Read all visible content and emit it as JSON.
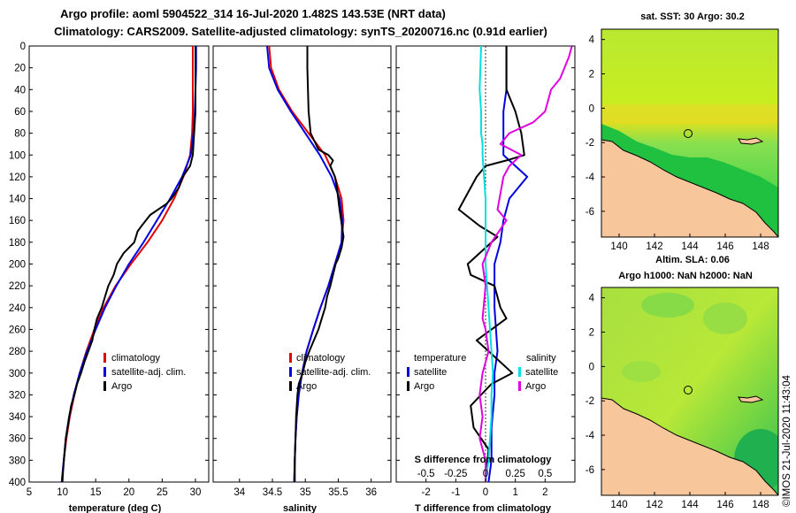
{
  "title": {
    "line1": "Argo profile: aoml 5904522_314 16-Jul-2020 1.482S 143.53E (NRT data)",
    "line2": "Climatology: CARS2009. Satellite-adjusted climatology: synTS_20200716.nc (0.91d earlier)"
  },
  "colors": {
    "climatology": "#e00000",
    "satellite": "#0000e0",
    "argo": "#000000",
    "sat_diff": "#00e0e0",
    "argo_s_diff": "#e000e0",
    "land": "#f7c69a"
  },
  "chart_data": [
    {
      "id": "temperature",
      "type": "line",
      "xlabel": "temperature (deg C)",
      "xlim": [
        5,
        32
      ],
      "ylim": [
        0,
        400
      ],
      "yticks": [
        0,
        20,
        40,
        60,
        80,
        100,
        120,
        140,
        160,
        180,
        200,
        220,
        240,
        260,
        280,
        300,
        320,
        340,
        360,
        380,
        400
      ],
      "xticks": [
        5,
        10,
        15,
        20,
        25,
        30
      ],
      "series": [
        {
          "name": "climatology",
          "x": [
            29.6,
            29.6,
            29.6,
            29.6,
            29.5,
            29.2,
            28.2,
            26.8,
            25.0,
            22.8,
            20.3,
            18.0,
            16.2,
            14.8,
            13.6,
            12.6,
            11.8,
            11.1,
            10.6,
            10.2,
            9.9
          ],
          "y": [
            0,
            20,
            40,
            60,
            80,
            100,
            120,
            140,
            160,
            180,
            200,
            220,
            240,
            260,
            280,
            300,
            320,
            340,
            360,
            380,
            400
          ]
        },
        {
          "name": "satellite-adj. clim.",
          "x": [
            30.1,
            30.1,
            30.0,
            29.9,
            29.7,
            29.3,
            28.0,
            26.2,
            24.2,
            22.2,
            20.0,
            18.1,
            16.4,
            15.0,
            13.7,
            12.6,
            11.7,
            11.0,
            10.5,
            10.2,
            9.9
          ],
          "y": [
            0,
            20,
            40,
            60,
            80,
            100,
            120,
            140,
            160,
            180,
            200,
            220,
            240,
            260,
            280,
            300,
            320,
            340,
            360,
            380,
            400
          ]
        },
        {
          "name": "Argo",
          "x": [
            30.0,
            30.0,
            30.0,
            30.0,
            29.8,
            29.6,
            29.2,
            28.1,
            27.5,
            26.4,
            25.6,
            23.2,
            21.9,
            21.3,
            20.8,
            19.2,
            18.2,
            17.7,
            16.9,
            16.4,
            15.9,
            15.2,
            14.8,
            14.5,
            13.9,
            13.3,
            12.8,
            12.2,
            11.8,
            11.3,
            10.9,
            10.5,
            10.3,
            10.1,
            10.0
          ],
          "y": [
            0,
            20,
            40,
            60,
            80,
            100,
            110,
            120,
            130,
            140,
            145,
            155,
            165,
            170,
            180,
            190,
            200,
            210,
            220,
            230,
            240,
            250,
            260,
            270,
            280,
            290,
            300,
            310,
            320,
            330,
            345,
            360,
            375,
            390,
            400
          ]
        }
      ]
    },
    {
      "id": "salinity",
      "type": "line",
      "xlabel": "salinity",
      "xlim": [
        33.6,
        36.3
      ],
      "xticks": [
        34,
        34.5,
        35,
        35.5,
        36
      ],
      "series": [
        {
          "name": "climatology",
          "x": [
            34.45,
            34.48,
            34.6,
            34.8,
            35.05,
            35.3,
            35.45,
            35.55,
            35.58,
            35.55,
            35.45,
            35.35,
            35.23,
            35.12,
            35.02,
            34.95,
            34.9,
            34.87,
            34.85,
            34.84,
            34.83
          ],
          "y": [
            0,
            20,
            40,
            60,
            80,
            100,
            120,
            140,
            160,
            180,
            200,
            220,
            240,
            260,
            280,
            300,
            320,
            340,
            360,
            380,
            400
          ]
        },
        {
          "name": "satellite-adj. clim.",
          "x": [
            34.42,
            34.45,
            34.58,
            34.78,
            35.0,
            35.22,
            35.4,
            35.52,
            35.56,
            35.55,
            35.45,
            35.35,
            35.23,
            35.12,
            35.02,
            34.95,
            34.9,
            34.87,
            34.85,
            34.84,
            34.83
          ],
          "y": [
            0,
            20,
            40,
            60,
            80,
            100,
            120,
            140,
            160,
            180,
            200,
            220,
            240,
            260,
            280,
            300,
            320,
            340,
            360,
            380,
            400
          ]
        },
        {
          "name": "Argo",
          "x": [
            35.03,
            35.03,
            35.04,
            35.05,
            35.08,
            35.2,
            35.35,
            35.42,
            35.38,
            35.45,
            35.48,
            35.5,
            35.52,
            35.58,
            35.55,
            35.5,
            35.46,
            35.42,
            35.38,
            35.33,
            35.3,
            35.25,
            35.2,
            35.13,
            35.06,
            35.0,
            34.96,
            34.9,
            34.88,
            34.86,
            34.85,
            34.84,
            34.84
          ],
          "y": [
            0,
            20,
            40,
            60,
            80,
            95,
            100,
            105,
            110,
            120,
            130,
            140,
            150,
            175,
            185,
            195,
            200,
            210,
            220,
            230,
            240,
            250,
            260,
            270,
            280,
            290,
            300,
            310,
            320,
            340,
            360,
            380,
            400
          ]
        }
      ]
    },
    {
      "id": "differences",
      "type": "line",
      "xlabel": "T difference from climatology",
      "xlabel2": "S difference from climatology",
      "xlim": [
        -3,
        3
      ],
      "xticks": [
        -2,
        -1,
        0,
        1,
        2
      ],
      "xticks2": [
        "-0.5",
        "-0.25",
        "0",
        "0.25",
        "0.5"
      ],
      "legend_titles": [
        "temperature",
        "salinity"
      ],
      "series": [
        {
          "name": "temperature satellite",
          "x": [
            0.7,
            0.7,
            0.7,
            0.6,
            0.6,
            0.6,
            1.0,
            1.4,
            0.8,
            0.6,
            0.5,
            0.3,
            0.3,
            0.4,
            0.3,
            0.3,
            0.2,
            0.2,
            0.1
          ],
          "y": [
            0,
            20,
            40,
            60,
            80,
            100,
            110,
            120,
            140,
            160,
            180,
            200,
            240,
            280,
            300,
            320,
            350,
            380,
            400
          ]
        },
        {
          "name": "temperature Argo",
          "x": [
            0.7,
            0.7,
            0.7,
            1.0,
            1.2,
            1.3,
            0.7,
            0.0,
            -0.3,
            -0.9,
            -0.2,
            0.4,
            -0.6,
            -0.5,
            0.3,
            0.5,
            0.7,
            -0.3,
            0.5,
            0.9,
            0.2,
            -0.5,
            -0.4,
            0.1,
            0.0
          ],
          "y": [
            0,
            20,
            40,
            60,
            80,
            100,
            105,
            110,
            120,
            150,
            165,
            175,
            200,
            210,
            220,
            240,
            250,
            270,
            290,
            300,
            310,
            330,
            350,
            370,
            400
          ]
        },
        {
          "name": "salinity satellite",
          "x": [
            -0.15,
            -0.2,
            -0.15,
            -0.15,
            -0.1,
            -0.1,
            -0.05,
            0.0,
            0.0,
            0.0,
            0.0,
            0.05,
            0.1,
            0.15,
            0.2,
            0.25,
            0.2,
            0.2,
            0.15,
            0.1,
            0.05,
            0.0
          ],
          "y": [
            0,
            40,
            60,
            80,
            90,
            100,
            120,
            140,
            160,
            180,
            200,
            220,
            240,
            260,
            280,
            300,
            320,
            340,
            360,
            380,
            390,
            400
          ]
        },
        {
          "name": "salinity Argo",
          "x": [
            2.9,
            2.8,
            2.5,
            2.2,
            2.0,
            1.6,
            0.8,
            0.5,
            1.2,
            0.8,
            0.6,
            0.4,
            0.7,
            0.2,
            -0.1,
            0.0,
            -0.1,
            0.0,
            0.1,
            -0.1,
            -0.2,
            -0.1,
            -0.2,
            0.0,
            0.0
          ],
          "y": [
            0,
            10,
            30,
            40,
            60,
            70,
            80,
            90,
            100,
            110,
            120,
            150,
            160,
            180,
            200,
            220,
            250,
            260,
            280,
            300,
            320,
            340,
            360,
            380,
            400
          ]
        }
      ]
    }
  ],
  "maps": [
    {
      "title": "sat. SST: 30 Argo: 30.2",
      "xticks": [
        "140",
        "142",
        "144",
        "146",
        "148"
      ],
      "yticks": [
        "4",
        "2",
        "0",
        "-2",
        "-4",
        "-6"
      ]
    },
    {
      "title1": "Altim. SLA: 0.06",
      "title2": "Argo h1000: NaN h2000: NaN",
      "xticks": [
        "140",
        "142",
        "144",
        "146",
        "148"
      ],
      "yticks": [
        "4",
        "2",
        "0",
        "-2",
        "-4",
        "-6"
      ]
    }
  ],
  "legend": {
    "climatology": "climatology",
    "satellite_adj": "satellite-adj. clim.",
    "argo": "Argo",
    "satellite": "satellite",
    "argo2": "Argo"
  },
  "credit": "©IMOS 21-Jul-2020 11:43:04"
}
